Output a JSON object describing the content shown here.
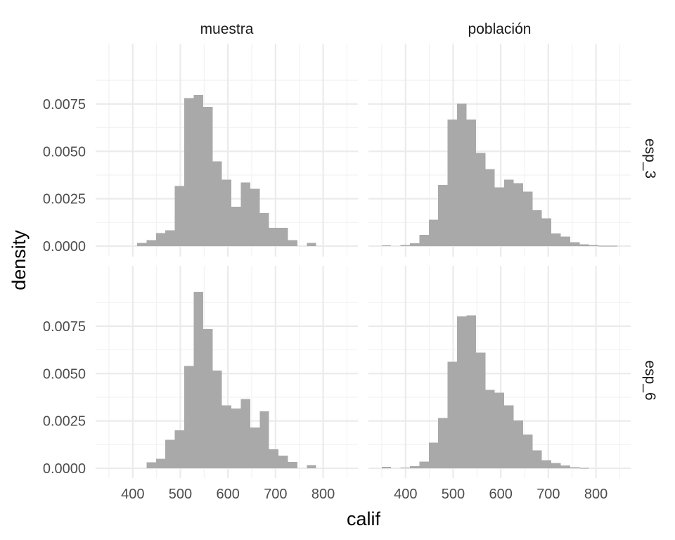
{
  "chart_data": {
    "type": "histogram",
    "xlabel": "calif",
    "ylabel": "density",
    "facet_cols": [
      "muestra",
      "población"
    ],
    "facet_rows": [
      "esp_3",
      "esp_6"
    ],
    "x_ticks": [
      400,
      500,
      600,
      700,
      800
    ],
    "y_ticks": [
      0,
      0.0025,
      0.005,
      0.0075
    ],
    "y_tick_labels": [
      "0.0000",
      "0.0025",
      "0.0050",
      "0.0075"
    ],
    "xlim": [
      322,
      873
    ],
    "ylim": [
      0,
      0.0095
    ],
    "bar_color": "#a9a9a9",
    "grid": true,
    "bin_width": 19.8,
    "bin_start": 330,
    "panels": [
      {
        "col": "muestra",
        "row": "esp_3",
        "densities": [
          0,
          0,
          0,
          0,
          0.00016,
          0.00032,
          0.00068,
          0.00084,
          0.00318,
          0.00781,
          0.00797,
          0.00734,
          0.00447,
          0.0035,
          0.00207,
          0.00335,
          0.00303,
          0.00175,
          0.00096,
          0.00096,
          0.00032,
          0,
          0.00016,
          0,
          0,
          0,
          0
        ]
      },
      {
        "col": "población",
        "row": "esp_3",
        "densities": [
          0,
          3e-05,
          0,
          5e-05,
          0.00015,
          0.0006,
          0.0014,
          0.00322,
          0.00668,
          0.00752,
          0.00668,
          0.00491,
          0.00407,
          0.00309,
          0.0035,
          0.00333,
          0.00288,
          0.0019,
          0.00146,
          0.00066,
          0.0005,
          0.0002,
          0.0001,
          5e-05,
          2e-05,
          1e-05,
          0
        ]
      },
      {
        "col": "muestra",
        "row": "esp_6",
        "densities": [
          0,
          0,
          0,
          0,
          0,
          0.00032,
          0.0005,
          0.0015,
          0.002,
          0.0054,
          0.00932,
          0.00735,
          0.00516,
          0.00333,
          0.00316,
          0.00366,
          0.00216,
          0.003,
          0.001,
          0.00066,
          0.00033,
          0,
          0.00017,
          0,
          0,
          0,
          0
        ]
      },
      {
        "col": "población",
        "row": "esp_6",
        "densities": [
          0,
          7e-05,
          0,
          3e-05,
          0.00012,
          0.00035,
          0.00135,
          0.00265,
          0.00562,
          0.00801,
          0.00808,
          0.0061,
          0.00414,
          0.00398,
          0.00332,
          0.00253,
          0.00178,
          0.00094,
          0.00043,
          0.00027,
          0.00014,
          5e-05,
          2e-05,
          0,
          0,
          0,
          0
        ]
      }
    ]
  }
}
